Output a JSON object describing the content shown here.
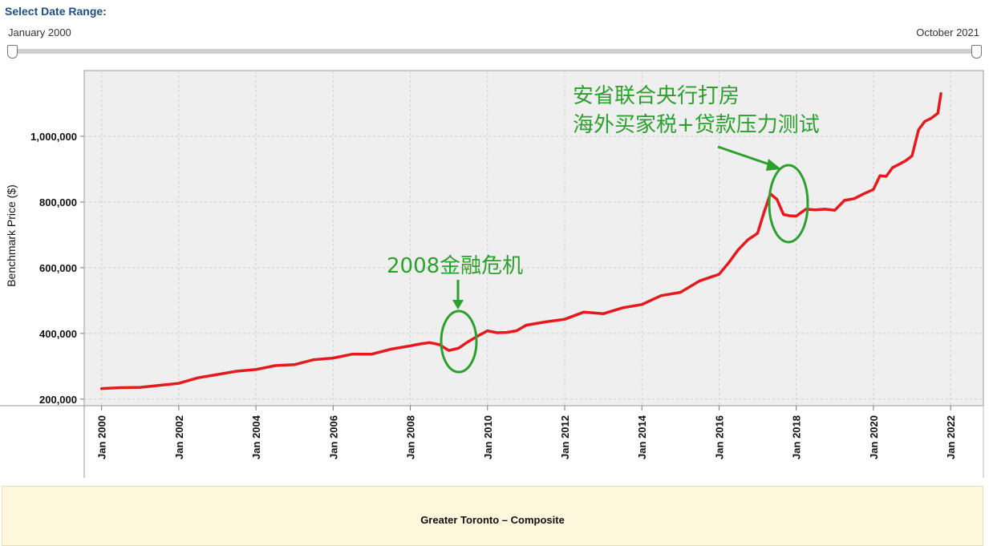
{
  "range": {
    "title": "Select Date Range:",
    "start_label": "January 2000",
    "end_label": "October 2021"
  },
  "colors": {
    "line": "#e41a1c",
    "annotation": "#2ca02c",
    "plot_bg": "#efefef",
    "footer_bg": "#fdf7dc"
  },
  "chart_data": {
    "type": "line",
    "ylabel": "Benchmark Price ($)",
    "xlim": [
      1999.55,
      2022.85
    ],
    "ylim": [
      180000,
      1200000
    ],
    "yticks": [
      200000,
      400000,
      600000,
      800000,
      1000000
    ],
    "ytick_labels": [
      "200,000",
      "400,000",
      "600,000",
      "800,000",
      "1,000,000"
    ],
    "xticks": [
      2000,
      2002,
      2004,
      2006,
      2008,
      2010,
      2012,
      2014,
      2016,
      2018,
      2020,
      2022
    ],
    "xtick_labels": [
      "Jan 2000",
      "Jan 2002",
      "Jan 2004",
      "Jan 2006",
      "Jan 2008",
      "Jan 2010",
      "Jan 2012",
      "Jan 2014",
      "Jan 2016",
      "Jan 2018",
      "Jan 2020",
      "Jan 2022"
    ],
    "grid": true,
    "series": [
      {
        "x": [
          2000.0,
          2000.5,
          2001.0,
          2001.5,
          2002.0,
          2002.5,
          2003.0,
          2003.5,
          2004.0,
          2004.5,
          2005.0,
          2005.5,
          2006.0,
          2006.5,
          2007.0,
          2007.5,
          2008.0,
          2008.25,
          2008.5,
          2008.75,
          2009.0,
          2009.25,
          2009.5,
          2009.75,
          2010.0,
          2010.25,
          2010.5,
          2010.75,
          2011.0,
          2011.5,
          2012.0,
          2012.5,
          2013.0,
          2013.5,
          2014.0,
          2014.5,
          2015.0,
          2015.5,
          2016.0,
          2016.25,
          2016.5,
          2016.75,
          2017.0,
          2017.17,
          2017.33,
          2017.5,
          2017.67,
          2017.83,
          2018.0,
          2018.25,
          2018.5,
          2018.75,
          2019.0,
          2019.25,
          2019.5,
          2019.75,
          2020.0,
          2020.17,
          2020.33,
          2020.5,
          2020.67,
          2020.83,
          2021.0,
          2021.17,
          2021.33,
          2021.5,
          2021.67,
          2021.75
        ],
        "y": [
          232000,
          235000,
          236000,
          242000,
          248000,
          265000,
          275000,
          285000,
          290000,
          302000,
          305000,
          320000,
          325000,
          337000,
          337000,
          352000,
          362000,
          368000,
          372000,
          366000,
          348000,
          355000,
          375000,
          392000,
          408000,
          402000,
          403000,
          408000,
          425000,
          435000,
          443000,
          465000,
          460000,
          478000,
          488000,
          515000,
          525000,
          560000,
          580000,
          615000,
          655000,
          685000,
          705000,
          770000,
          825000,
          808000,
          762000,
          758000,
          757000,
          778000,
          776000,
          778000,
          775000,
          805000,
          810000,
          825000,
          838000,
          880000,
          878000,
          905000,
          915000,
          925000,
          940000,
          1020000,
          1045000,
          1055000,
          1070000,
          1130000
        ]
      }
    ],
    "annotations": [
      {
        "text": "2008金融危机"
      },
      {
        "text": "安省联合央行打房"
      },
      {
        "text": "海外买家税+贷款压力测试"
      }
    ]
  },
  "footer": {
    "title": "Greater Toronto – Composite"
  }
}
